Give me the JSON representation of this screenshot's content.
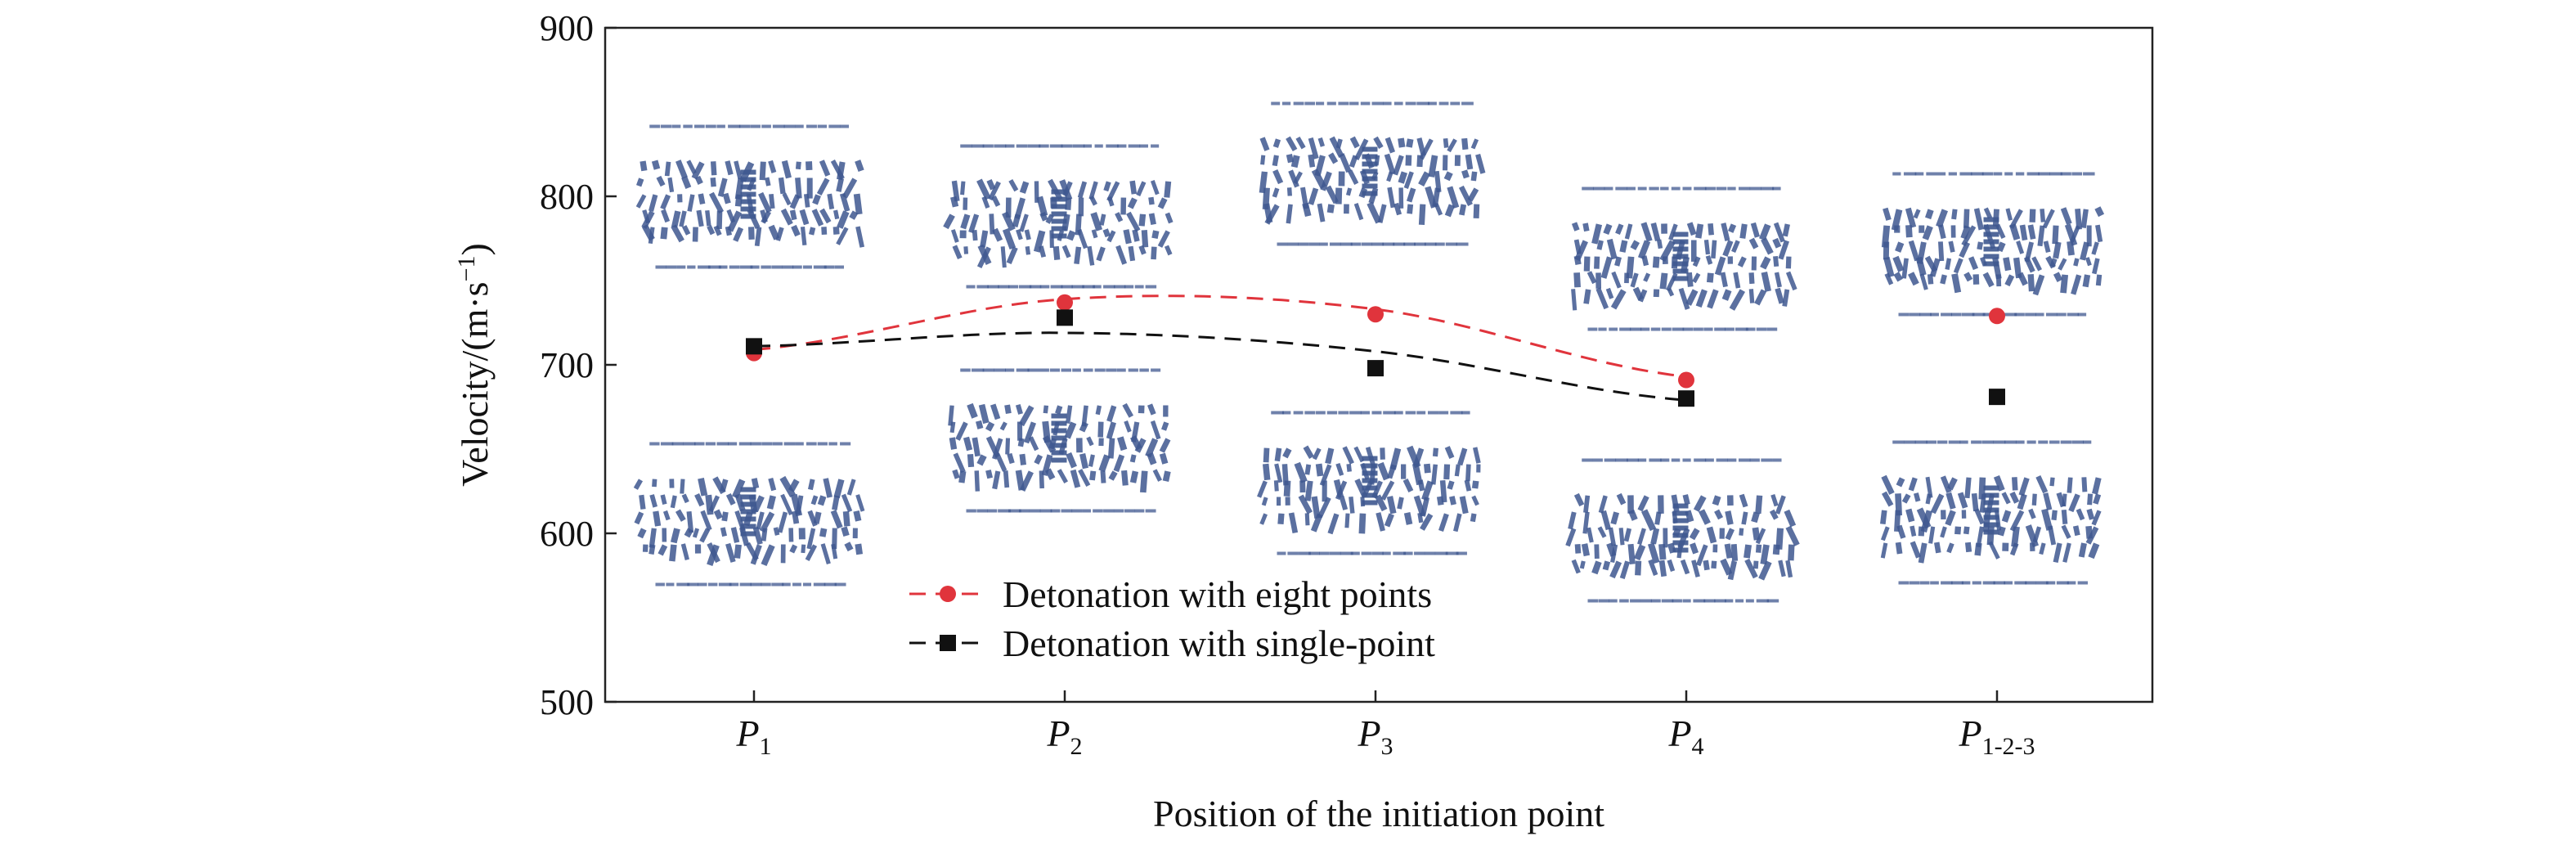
{
  "chart_data": {
    "type": "scatter",
    "title": "",
    "xlabel": "Position of the initiation point",
    "ylabel": "Velocity/(m·s",
    "ylabel_sup": "−1",
    "ylabel_close": ")",
    "ylim": [
      500,
      900
    ],
    "yticks": [
      500,
      600,
      700,
      800,
      900
    ],
    "grid": false,
    "legend_position": "center-bottom",
    "categories": [
      {
        "main": "P",
        "sub": "1"
      },
      {
        "main": "P",
        "sub": "2"
      },
      {
        "main": "P",
        "sub": "3"
      },
      {
        "main": "P",
        "sub": "4"
      },
      {
        "main": "P",
        "sub": "1-2-3"
      }
    ],
    "series": [
      {
        "name": "Detonation with eight points",
        "color": "#e0343c",
        "marker": "circle",
        "values": [
          707,
          737,
          730,
          691,
          729
        ],
        "fit_line": {
          "style": "dashed",
          "x_range": [
            0,
            3
          ],
          "y": [
            709,
            739,
            733,
            693
          ]
        }
      },
      {
        "name": "Detonation with single-point",
        "color": "#111111",
        "marker": "square",
        "values": [
          711,
          728,
          698,
          680,
          681
        ],
        "fit_line": {
          "style": "dashed",
          "x_range": [
            0,
            3
          ],
          "y": [
            711,
            719,
            708,
            679
          ]
        }
      }
    ]
  },
  "insets": [
    {
      "name": "fragment-cloud-p1",
      "color": "#3f5890"
    },
    {
      "name": "fragment-cloud-p2",
      "color": "#3f5890"
    },
    {
      "name": "fragment-cloud-p3",
      "color": "#3f5890"
    },
    {
      "name": "fragment-cloud-p4",
      "color": "#3f5890"
    },
    {
      "name": "fragment-cloud-p123",
      "color": "#3f5890"
    }
  ]
}
